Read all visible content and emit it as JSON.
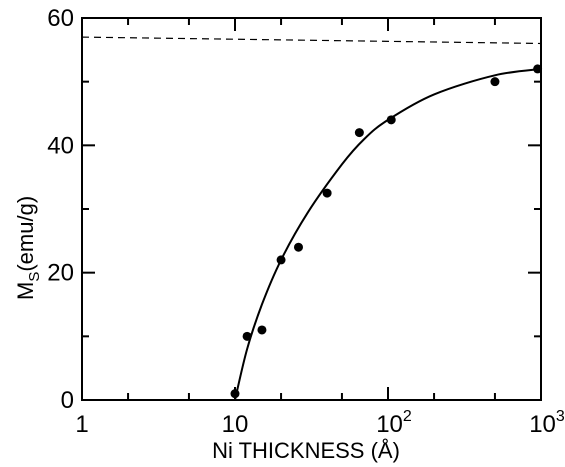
{
  "chart_data": {
    "type": "scatter",
    "title": "",
    "xlabel": "Ni THICKNESS (Å)",
    "ylabel_main": "M",
    "ylabel_sub": "S",
    "ylabel_tail": "(emu/g)",
    "x_scale": "log",
    "xlim": [
      1,
      1000
    ],
    "ylim": [
      0,
      60
    ],
    "grid": false,
    "x_ticks": [
      {
        "value": 1,
        "base": "1",
        "exp": ""
      },
      {
        "value": 10,
        "base": "10",
        "exp": ""
      },
      {
        "value": 100,
        "base": "10",
        "exp": "2"
      },
      {
        "value": 1000,
        "base": "10",
        "exp": "3"
      }
    ],
    "y_ticks": [
      {
        "value": 0,
        "label": "0"
      },
      {
        "value": 20,
        "label": "20"
      },
      {
        "value": 40,
        "label": "40"
      },
      {
        "value": 60,
        "label": "60"
      }
    ],
    "series": [
      {
        "points": [
          {
            "x": 10,
            "y": 1
          },
          {
            "x": 12,
            "y": 10
          },
          {
            "x": 15,
            "y": 11
          },
          {
            "x": 20,
            "y": 22
          },
          {
            "x": 26,
            "y": 24
          },
          {
            "x": 40,
            "y": 32.5
          },
          {
            "x": 65,
            "y": 42
          },
          {
            "x": 105,
            "y": 44
          },
          {
            "x": 500,
            "y": 50
          },
          {
            "x": 950,
            "y": 52
          }
        ]
      }
    ],
    "fit_curve": [
      {
        "x": 10,
        "y": 0
      },
      {
        "x": 12,
        "y": 8
      },
      {
        "x": 15,
        "y": 15
      },
      {
        "x": 20,
        "y": 22
      },
      {
        "x": 30,
        "y": 29.5
      },
      {
        "x": 50,
        "y": 37
      },
      {
        "x": 70,
        "y": 41
      },
      {
        "x": 100,
        "y": 44
      },
      {
        "x": 200,
        "y": 48
      },
      {
        "x": 500,
        "y": 51
      },
      {
        "x": 1000,
        "y": 52
      }
    ],
    "reference_line": {
      "y_start": 57,
      "y_end": 56
    }
  }
}
